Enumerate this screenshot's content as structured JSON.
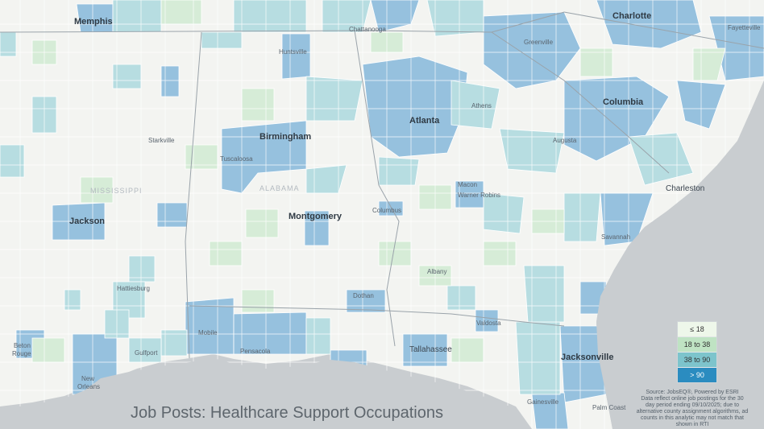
{
  "title": "Job Posts: Healthcare Support Occupations",
  "legend": {
    "items": [
      {
        "label": "≤ 18",
        "color": "#eef7ea"
      },
      {
        "label": "18 to 38",
        "color": "#bfe3c3"
      },
      {
        "label": "38 to 90",
        "color": "#7dc4cc"
      },
      {
        "label": "> 90",
        "color": "#2b8cc0"
      }
    ]
  },
  "source": {
    "line1": "Source: JobsEQ®, Powered by ESRI",
    "line2": "Data reflect online job postings for the 30",
    "line3": "day period ending 09/10/2025; due to",
    "line4": "alternative county assignment algorithms, ad",
    "line5": "counts in this analytic may not match that",
    "line6": "shown in RTI"
  },
  "states": {
    "mississippi": "MISSISSIPPI",
    "alabama": "ALABAMA"
  },
  "cities": {
    "memphis": "Memphis",
    "charlotte": "Charlotte",
    "fayetteville": "Fayetteville",
    "chattanooga": "Chattanooga",
    "greenville": "Greenville",
    "huntsville": "Huntsville",
    "athens": "Athens",
    "birmingham": "Birmingham",
    "atlanta": "Atlanta",
    "columbia": "Columbia",
    "starkville": "Starkville",
    "augusta": "Augusta",
    "tuscaloosa": "Tuscaloosa",
    "macon": "Macon",
    "warner_robins": "Warner Robins",
    "charleston": "Charleston",
    "jackson_ms": "Jackson",
    "montgomery": "Montgomery",
    "columbus": "Columbus",
    "savannah": "Savannah",
    "albany": "Albany",
    "hattiesburg": "Hattiesburg",
    "dothan": "Dothan",
    "valdosta": "Valdosta",
    "mobile": "Mobile",
    "baton_rouge": "Baton Rouge",
    "pensacola": "Pensacola",
    "tallahassee": "Tallahassee",
    "gulfport": "Gulfport",
    "jacksonville": "Jacksonville",
    "new_orleans": "New Orleans",
    "gainesville": "Gainesville",
    "palm_coast": "Palm Coast"
  }
}
